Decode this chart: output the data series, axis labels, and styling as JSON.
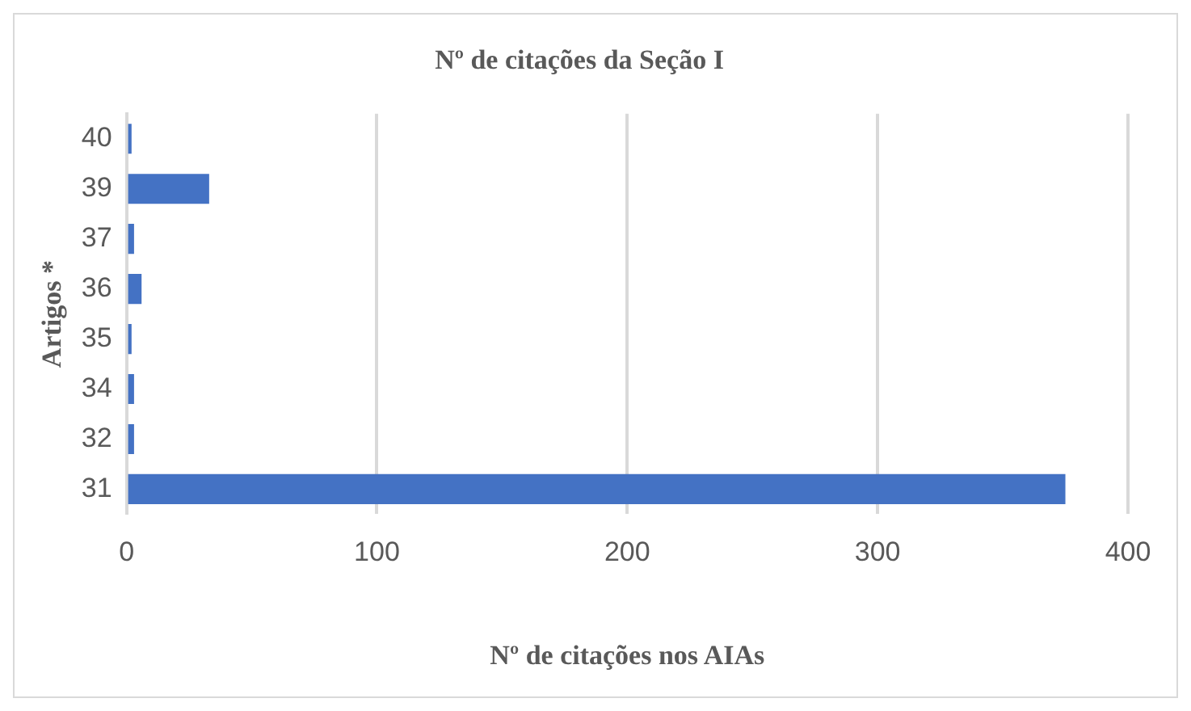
{
  "chart_data": {
    "type": "bar",
    "orientation": "horizontal",
    "title": "Nº de citações da Seção I",
    "xlabel": "Nº de citações nos AIAs",
    "ylabel": "Artigos *",
    "categories": [
      "40",
      "39",
      "37",
      "36",
      "35",
      "34",
      "32",
      "31"
    ],
    "values": [
      2,
      33,
      3,
      6,
      2,
      3,
      3,
      375
    ],
    "color": "#4472c4",
    "xlim": [
      0,
      400
    ],
    "xticks": [
      0,
      100,
      200,
      300,
      400
    ],
    "grid": "x",
    "legend": false
  }
}
